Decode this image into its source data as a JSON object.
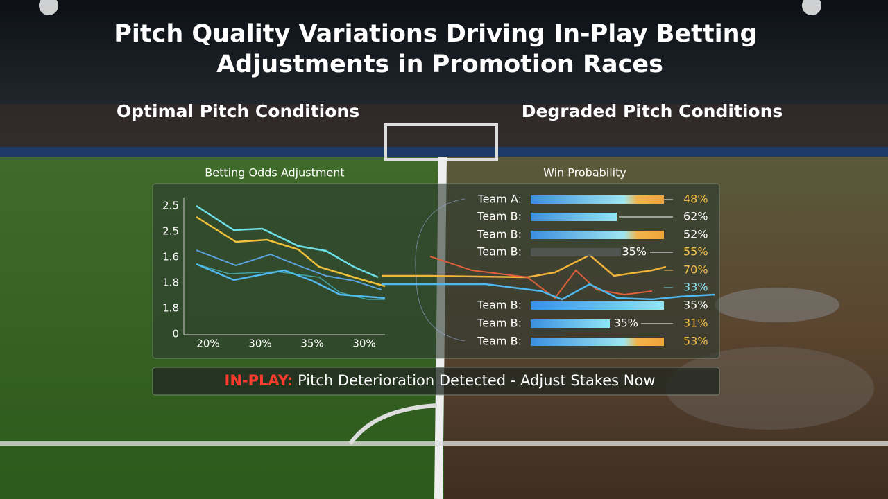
{
  "title": "Pitch Quality Variations Driving In-Play Betting Adjustments in Promotion Races",
  "panels": {
    "left": "Optimal Pitch Conditions",
    "right": "Degraded Pitch Conditions"
  },
  "odds_chart": {
    "title": "Betting Odds Adjustment",
    "y_labels": [
      "2.5",
      "2.5",
      "1.6",
      "1.8",
      "1.8",
      "0"
    ],
    "x_labels": [
      "20%",
      "30%",
      "35%",
      "30%"
    ]
  },
  "win_probability": {
    "title": "Win Probability",
    "rows": [
      {
        "team": "Team A:",
        "value": "48%"
      },
      {
        "team": "Team B:",
        "value": "62%"
      },
      {
        "team": "Team B:",
        "value": "52%"
      },
      {
        "team": "Team B:",
        "mid": "35%",
        "value": "55%"
      },
      {
        "value": "70%"
      },
      {
        "value": "33%"
      },
      {
        "team": "Team B:",
        "value": "35%"
      },
      {
        "team": "Team B:",
        "mid": "35%",
        "value": "31%"
      },
      {
        "team": "Team B:",
        "value": "53%"
      }
    ]
  },
  "alert": {
    "label": "IN-PLAY:",
    "message": "Pitch Deterioration Detected - Adjust Stakes Now"
  }
}
